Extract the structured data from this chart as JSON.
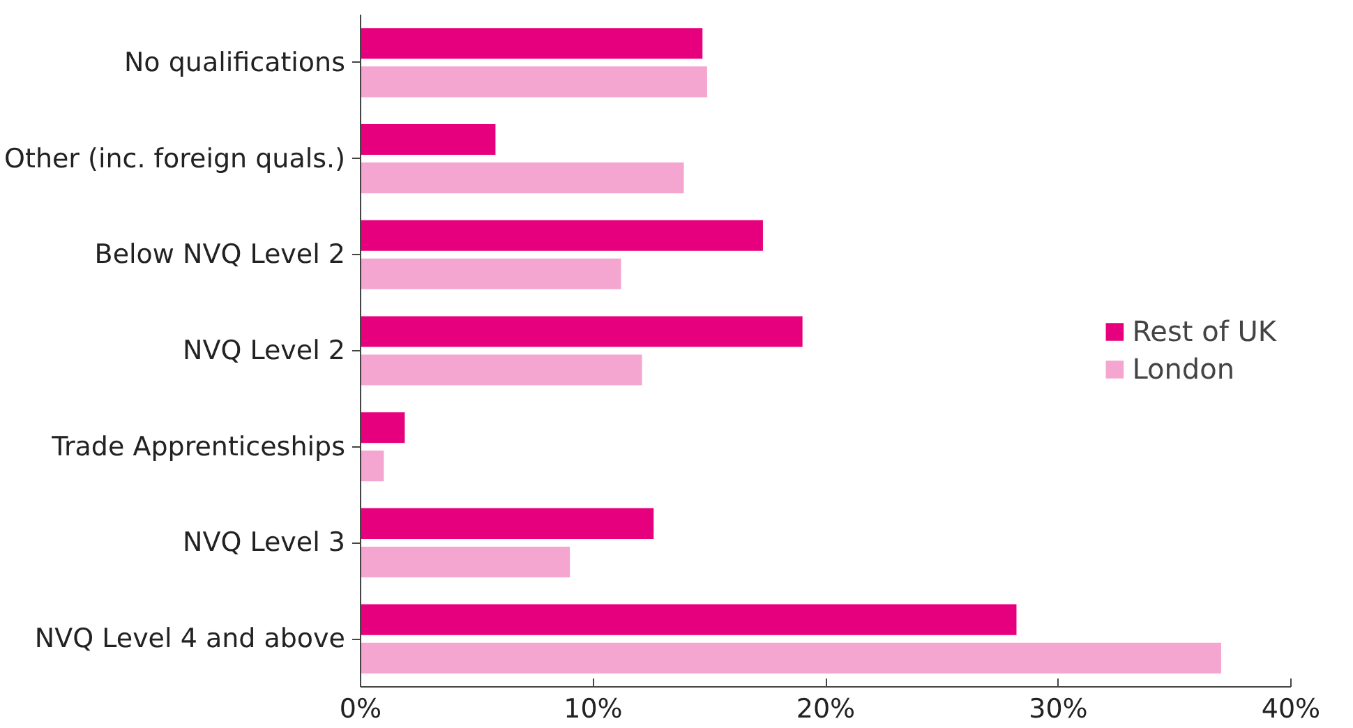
{
  "chart_data": {
    "type": "bar",
    "orientation": "horizontal",
    "categories": [
      "No qualifications",
      "Other (inc. foreign quals.)",
      "Below NVQ Level 2",
      "NVQ Level 2",
      "Trade Apprenticeships",
      "NVQ Level 3",
      "NVQ Level 4 and above"
    ],
    "series": [
      {
        "name": "Rest of UK",
        "color": "#e6007e",
        "values": [
          14.7,
          5.8,
          17.3,
          19.0,
          1.9,
          12.6,
          28.2
        ]
      },
      {
        "name": "London",
        "color": "#f4a6d0",
        "values": [
          14.9,
          13.9,
          11.2,
          12.1,
          1.0,
          9.0,
          37.0
        ]
      }
    ],
    "xlim": [
      0,
      40
    ],
    "xticks": [
      {
        "value": 0,
        "label": "0%"
      },
      {
        "value": 10,
        "label": "10%"
      },
      {
        "value": 20,
        "label": "20%"
      },
      {
        "value": 30,
        "label": "30%"
      },
      {
        "value": 40,
        "label": "40%"
      }
    ],
    "grid": false,
    "legend": "right"
  }
}
